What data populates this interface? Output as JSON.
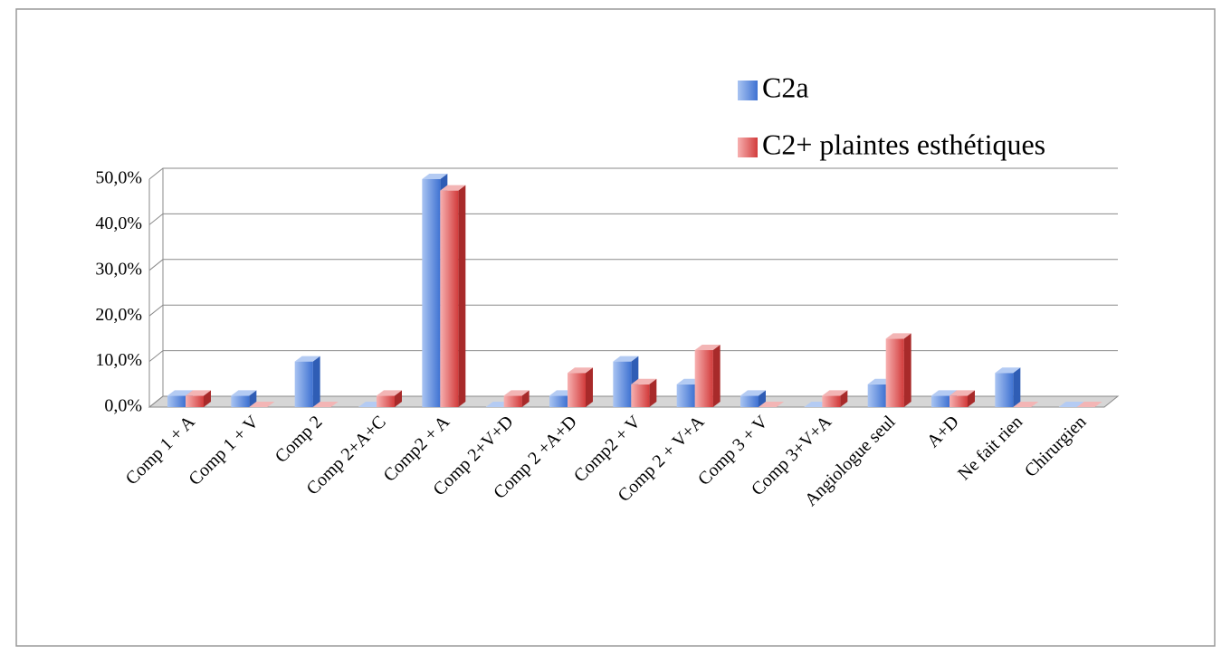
{
  "chart_data": {
    "type": "bar3d",
    "categories": [
      "Comp 1 + A",
      "Comp 1 + V",
      "Comp 2",
      "Comp 2+A+C",
      "Comp2 + A",
      "Comp 2+V+D",
      "Comp 2 +A+D",
      "Comp2 + V",
      "Comp 2 + V+A",
      "Comp 3 + V",
      "Comp 3+V+A",
      "Angiologue seul",
      "A+D",
      "Ne fait rien",
      "Chirurgien"
    ],
    "series": [
      {
        "name": "C2a",
        "color": "#4f81d9",
        "values": [
          2.5,
          2.5,
          10,
          0,
          50,
          0,
          2.5,
          10,
          5,
          2.5,
          0,
          5,
          2.5,
          7.5,
          0
        ]
      },
      {
        "name": "C2+ plaintes esthétiques",
        "color": "#d94a4a",
        "values": [
          2.5,
          0,
          0,
          2.5,
          47.5,
          2.5,
          7.5,
          5,
          12.5,
          0,
          2.5,
          15,
          2.5,
          0,
          0
        ]
      }
    ],
    "ylim": [
      0,
      50
    ],
    "yticks": [
      {
        "value": 0,
        "label": "0,0%"
      },
      {
        "value": 10,
        "label": "10,0%"
      },
      {
        "value": 20,
        "label": "20,0%"
      },
      {
        "value": 30,
        "label": "30,0%"
      },
      {
        "value": 40,
        "label": "40,0%"
      },
      {
        "value": 50,
        "label": "50,0%"
      }
    ],
    "grid": true,
    "legend": "top-right"
  }
}
